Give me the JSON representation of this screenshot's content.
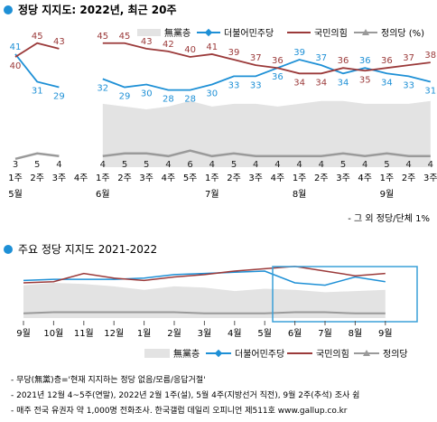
{
  "chart_data": [
    {
      "type": "line",
      "title": "정당 지지도: 2022년, 최근 20주",
      "legend_position": "top-right",
      "legend": [
        "無黨층",
        "더불어민주당",
        "국민의힘",
        "정의당 (%)"
      ],
      "x": [
        "1주",
        "2주",
        "3주",
        "4주",
        "1주",
        "2주",
        "3주",
        "4주",
        "5주",
        "1주",
        "2주",
        "3주",
        "4주",
        "1주",
        "2주",
        "3주",
        "4주",
        "1주",
        "2주",
        "3주"
      ],
      "month_labels": [
        {
          "index": 0,
          "label": "5월"
        },
        {
          "index": 4,
          "label": "6월"
        },
        {
          "index": 9,
          "label": "7월"
        },
        {
          "index": 13,
          "label": "8월"
        },
        {
          "index": 17,
          "label": "9월"
        }
      ],
      "series": [
        {
          "name": "無黨층",
          "values": [
            null,
            null,
            null,
            null,
            23,
            22,
            21,
            22,
            24,
            22,
            23,
            23,
            22,
            23,
            24,
            24,
            23,
            23,
            23,
            24
          ]
        },
        {
          "name": "더불어민주당",
          "values": [
            41,
            31,
            29,
            null,
            32,
            29,
            30,
            28,
            28,
            30,
            33,
            33,
            36,
            39,
            37,
            34,
            36,
            34,
            33,
            31
          ]
        },
        {
          "name": "국민의힘",
          "values": [
            40,
            45,
            43,
            null,
            45,
            45,
            43,
            42,
            40,
            41,
            39,
            37,
            36,
            34,
            34,
            36,
            35,
            36,
            37,
            38
          ]
        },
        {
          "name": "정의당",
          "values": [
            3,
            5,
            4,
            null,
            4,
            5,
            5,
            4,
            6,
            4,
            5,
            4,
            4,
            4,
            4,
            5,
            4,
            5,
            4,
            4
          ]
        }
      ],
      "note": "- 그 외 정당/단체 1%"
    },
    {
      "type": "line",
      "title": "주요 정당 지지도 2021-2022",
      "legend_position": "bottom",
      "legend": [
        "無黨층",
        "더불어민주당",
        "국민의힘",
        "정의당"
      ],
      "x_labels": [
        "9월",
        "10월",
        "11월",
        "12월",
        "1월",
        "2월",
        "3월",
        "4월",
        "5월",
        "6월",
        "7월",
        "8월",
        "9월"
      ],
      "series": [
        {
          "name": "無黨층",
          "values": [
            28,
            30,
            29,
            27,
            24,
            27,
            26,
            23,
            25,
            24,
            22,
            23,
            24
          ]
        },
        {
          "name": "더불어민주당",
          "values": [
            32,
            33,
            33,
            33,
            34,
            37,
            38,
            39,
            40,
            30,
            28,
            35,
            31
          ]
        },
        {
          "name": "국민의힘",
          "values": [
            30,
            31,
            38,
            34,
            32,
            35,
            37,
            40,
            42,
            44,
            40,
            36,
            38
          ]
        },
        {
          "name": "정의당",
          "values": [
            4,
            5,
            5,
            5,
            5,
            5,
            4,
            4,
            4,
            5,
            5,
            4,
            4
          ]
        }
      ]
    }
  ],
  "footnotes": [
    "- 무당(無黨)층='현재 지지하는 정당 없음/모름/응답거절'",
    "- 2021년 12월 4~5주(연말), 2022년 2월 1주(설), 5월 4주(지방선거 직전), 9월 2주(추석) 조사 쉼",
    "- 매주 전국 유권자 약 1,000명 전화조사. 한국갤럽 데일리 오피니언 제511호 www.gallup.co.kr"
  ],
  "colors": {
    "minjoo": "#1e90d6",
    "ppp": "#9b3a3a",
    "justice": "#9a9a9a",
    "nonpartisan": "#e3e3e3",
    "title_dot": "#1e90d6",
    "highlight_box": "#3aa0d8"
  }
}
